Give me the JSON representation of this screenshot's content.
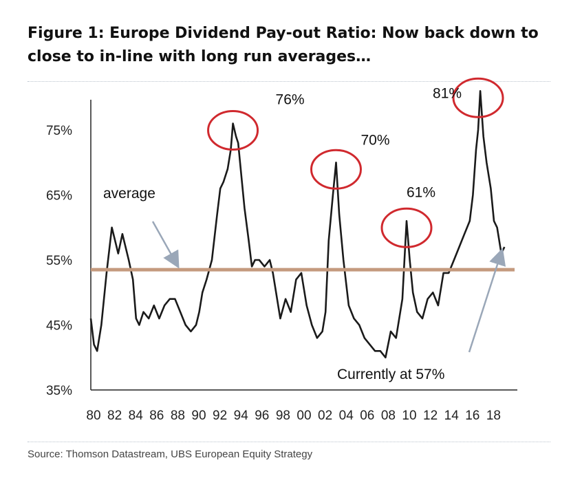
{
  "title": "Figure 1: Europe Dividend Pay-out Ratio: Now back down to close to in-line with long run averages…",
  "source": "Source:  Thomson Datastream, UBS European Equity Strategy",
  "colors": {
    "series": "#1a1a1a",
    "average_line": "#c49a7e",
    "circles": "#d0292e",
    "arrows": "#9aa7b8"
  },
  "chart_data": {
    "type": "line",
    "title": "Figure 1: Europe Dividend Pay-out Ratio: Now back down to close to in-line with long run averages…",
    "xlabel": "",
    "ylabel": "",
    "xlim": [
      1980,
      2019.5
    ],
    "ylim": [
      35,
      80
    ],
    "x_ticks": [
      "80",
      "82",
      "84",
      "86",
      "88",
      "90",
      "92",
      "94",
      "96",
      "98",
      "00",
      "02",
      "04",
      "06",
      "08",
      "10",
      "12",
      "14",
      "16",
      "18"
    ],
    "x_tick_values": [
      1980,
      1982,
      1984,
      1986,
      1988,
      1990,
      1992,
      1994,
      1996,
      1998,
      2000,
      2002,
      2004,
      2006,
      2008,
      2010,
      2012,
      2014,
      2016,
      2018
    ],
    "y_ticks": [
      "35%",
      "45%",
      "55%",
      "65%",
      "75%"
    ],
    "y_tick_values": [
      35,
      45,
      55,
      65,
      75
    ],
    "average": 53.5,
    "series": [
      {
        "x": [
          1980,
          1980.3,
          1980.6,
          1981,
          1981.5,
          1982,
          1982.3,
          1982.6,
          1983,
          1983.3,
          1983.6,
          1984,
          1984.3,
          1984.6,
          1985,
          1985.5,
          1986,
          1986.5,
          1987,
          1987.5,
          1988,
          1988.5,
          1989,
          1989.5,
          1990,
          1990.3,
          1990.6,
          1991,
          1991.5,
          1992,
          1992.3,
          1992.6,
          1993,
          1993.3,
          1993.5,
          1993.8,
          1994,
          1994.3,
          1994.6,
          1995,
          1995.3,
          1995.6,
          1996,
          1996.5,
          1997,
          1997.3,
          1997.6,
          1998,
          1998.5,
          1999,
          1999.5,
          2000,
          2000.5,
          2001,
          2001.5,
          2002,
          2002.3,
          2002.6,
          2003,
          2003.3,
          2003.6,
          2004,
          2004.5,
          2005,
          2005.5,
          2006,
          2006.5,
          2007,
          2007.5,
          2008,
          2008.5,
          2009,
          2009.3,
          2009.6,
          2009.8,
          2010,
          2010.3,
          2010.6,
          2011,
          2011.5,
          2012,
          2012.5,
          2013,
          2013.5,
          2014,
          2014.5,
          2015,
          2015.5,
          2016,
          2016.3,
          2016.6,
          2016.8,
          2017,
          2017.3,
          2017.6,
          2018,
          2018.3,
          2018.6,
          2019,
          2019.3
        ],
        "values": [
          46,
          42,
          41,
          45,
          53,
          60,
          58,
          56,
          59,
          57,
          55,
          52,
          46,
          45,
          47,
          46,
          48,
          46,
          48,
          49,
          49,
          47,
          45,
          44,
          45,
          47,
          50,
          52,
          55,
          62,
          66,
          67,
          69,
          72,
          76,
          74,
          73,
          68,
          63,
          58,
          54,
          55,
          55,
          54,
          55,
          53,
          50,
          46,
          49,
          47,
          52,
          53,
          48,
          45,
          43,
          44,
          47,
          58,
          65,
          70,
          62,
          55,
          48,
          46,
          45,
          43,
          42,
          41,
          41,
          40,
          44,
          43,
          46,
          49,
          55,
          61,
          55,
          50,
          47,
          46,
          49,
          50,
          48,
          53,
          53,
          55,
          57,
          59,
          61,
          65,
          72,
          75,
          81,
          74,
          70,
          66,
          61,
          60,
          56,
          57
        ]
      }
    ],
    "annotations": [
      {
        "text": "76%",
        "x": 1993.5,
        "y": 76
      },
      {
        "text": "70%",
        "x": 2003.3,
        "y": 70
      },
      {
        "text": "61%",
        "x": 2010,
        "y": 61
      },
      {
        "text": "81%",
        "x": 2016.8,
        "y": 81
      },
      {
        "text": "average",
        "target_x": 1988.5,
        "target_y": 53.5
      },
      {
        "text": "Currently at 57%",
        "target_x": 2019.3,
        "target_y": 57
      }
    ]
  }
}
